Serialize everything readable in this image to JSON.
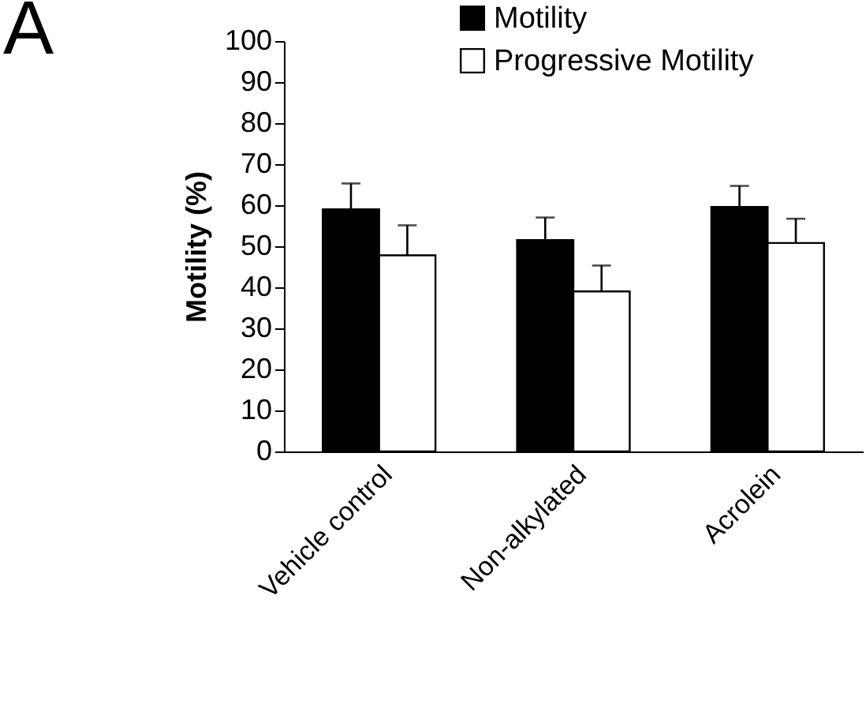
{
  "chart_data": {
    "type": "bar",
    "title": "A",
    "ylabel": "Motility (%)",
    "categories": [
      "Vehicle control",
      "Non-alkylated",
      "Acrolein"
    ],
    "series": [
      {
        "name": "Motility",
        "color": "#000000",
        "values": [
          59,
          51.5,
          59.6
        ],
        "errors": [
          6.3,
          5.5,
          5.1
        ]
      },
      {
        "name": "Progressive Motility",
        "color": "#ffffff",
        "values": [
          47.8,
          39,
          50.8
        ],
        "errors": [
          7.3,
          6.3,
          5.9
        ]
      }
    ],
    "ylim": [
      0,
      100
    ],
    "yticks": [
      0,
      10,
      20,
      30,
      40,
      50,
      60,
      70,
      80,
      90,
      100
    ],
    "grid": false,
    "legend": "top right"
  }
}
